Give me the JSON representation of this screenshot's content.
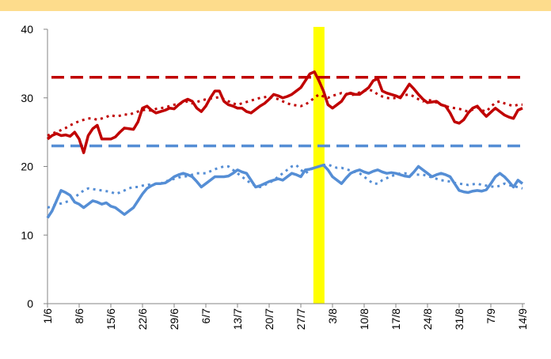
{
  "chart_data": {
    "type": "line",
    "categories": [
      "1/6",
      null,
      null,
      null,
      null,
      null,
      null,
      "8/6",
      null,
      null,
      null,
      null,
      null,
      null,
      "15/6",
      null,
      null,
      null,
      null,
      null,
      null,
      "22/6",
      null,
      null,
      null,
      null,
      null,
      null,
      "29/6",
      null,
      null,
      null,
      null,
      null,
      null,
      "6/7",
      null,
      null,
      null,
      null,
      null,
      null,
      "13/7",
      null,
      null,
      null,
      null,
      null,
      null,
      "20/7",
      null,
      null,
      null,
      null,
      null,
      null,
      "27/7",
      null,
      null,
      null,
      null,
      null,
      null,
      "3/8",
      null,
      null,
      null,
      null,
      null,
      null,
      "10/8",
      null,
      null,
      null,
      null,
      null,
      null,
      "17/8",
      null,
      null,
      null,
      null,
      null,
      null,
      "24/8",
      null,
      null,
      null,
      null,
      null,
      null,
      "31/8",
      null,
      null,
      null,
      null,
      null,
      null,
      "7/9",
      null,
      null,
      null,
      null,
      null,
      null,
      "14/9"
    ],
    "series": [
      {
        "color": "#c00000",
        "style": "solid",
        "values": [
          24,
          24.5,
          24.8,
          24.5,
          24.6,
          24.4,
          25,
          24,
          22,
          24.5,
          25.5,
          26,
          24,
          24,
          24,
          24.3,
          25,
          25.6,
          25.5,
          25.4,
          26.5,
          28.5,
          28.8,
          28.2,
          27.8,
          28,
          28.2,
          28.5,
          28.4,
          29,
          29.5,
          29.8,
          29.5,
          28.5,
          28,
          28.8,
          30,
          31,
          31,
          29.5,
          29,
          28.8,
          28.5,
          28.5,
          28,
          27.8,
          28.3,
          28.8,
          29.2,
          29.8,
          30.5,
          30.3,
          30,
          30.2,
          30.5,
          31,
          31.5,
          32.5,
          33.5,
          33.8,
          32.5,
          31,
          29,
          28.5,
          29,
          29.5,
          30.5,
          30.7,
          30.5,
          30.5,
          31,
          31.5,
          32.5,
          32.8,
          31,
          30.7,
          30.5,
          30.3,
          30,
          31,
          32,
          31.3,
          30.5,
          29.8,
          29.3,
          29.4,
          29.5,
          29,
          28.8,
          27.8,
          26.5,
          26.3,
          26.8,
          27.8,
          28.5,
          28.8,
          28,
          27.3,
          27.9,
          28.5,
          28,
          27.5,
          27.2,
          27,
          28.2,
          28.5
        ]
      },
      {
        "color": "#c00000",
        "style": "dotted",
        "values": [
          24.5,
          24.8,
          25,
          25.3,
          25.6,
          26,
          26.3,
          26.6,
          26.8,
          27,
          27,
          26.8,
          27,
          27.2,
          27.5,
          27.3,
          27.4,
          27.6,
          27.5,
          27.8,
          28,
          28.2,
          28.3,
          28.1,
          28.4,
          28.5,
          28.6,
          28.8,
          29,
          29.1,
          29.3,
          29.5,
          29.2,
          29.4,
          29.6,
          29.8,
          29.9,
          30,
          30.1,
          29.8,
          29.5,
          29.2,
          29,
          29.2,
          29.4,
          29.6,
          29.8,
          30,
          30.1,
          30.2,
          30,
          29.8,
          29.5,
          29.2,
          29,
          28.9,
          28.8,
          29,
          29.5,
          30,
          30.5,
          30.2,
          30,
          30.3,
          30.5,
          30.7,
          30.6,
          30.4,
          30.5,
          30.8,
          31,
          31.2,
          31,
          30.5,
          30.2,
          30,
          29.9,
          30,
          30.2,
          30.4,
          30.5,
          30.2,
          29.8,
          29.5,
          29.7,
          29.6,
          29.3,
          29,
          28.8,
          28.6,
          28.5,
          28.4,
          28.2,
          28,
          28.3,
          28.6,
          28.2,
          28,
          28.7,
          29.3,
          29.5,
          29.2,
          29,
          28.8,
          29,
          29
        ]
      },
      {
        "color": "#558ed5",
        "style": "solid",
        "values": [
          12.5,
          13.5,
          15,
          16.5,
          16.2,
          15.8,
          14.8,
          14.5,
          14,
          14.5,
          15,
          14.8,
          14.5,
          14.7,
          14.2,
          14,
          13.5,
          13,
          13.5,
          14,
          15,
          16,
          16.8,
          17.2,
          17.5,
          17.5,
          17.6,
          18,
          18.5,
          18.8,
          19,
          18.8,
          18.5,
          17.8,
          17,
          17.5,
          18,
          18.5,
          18.5,
          18.5,
          18.6,
          19,
          19.5,
          19.2,
          19,
          18,
          17,
          17.2,
          17.5,
          17.8,
          18,
          18.2,
          18,
          18.5,
          19,
          18.8,
          18.5,
          19.5,
          19.6,
          19.8,
          20,
          20.2,
          19.5,
          18.5,
          18,
          17.5,
          18.3,
          19,
          19.3,
          19.5,
          19.2,
          19,
          19.3,
          19.5,
          19.2,
          19,
          19.1,
          19,
          18.8,
          18.6,
          18.5,
          19.2,
          20,
          19.5,
          19,
          18.5,
          18.8,
          19,
          18.8,
          18.5,
          17.5,
          16.5,
          16.3,
          16.2,
          16.4,
          16.5,
          16.4,
          16.6,
          17.5,
          18.5,
          19,
          18.5,
          17.8,
          17,
          18,
          17.5
        ]
      },
      {
        "color": "#558ed5",
        "style": "dotted",
        "values": [
          14,
          14.2,
          14.5,
          14.6,
          14.8,
          15,
          15.5,
          16,
          16.5,
          16.8,
          16.7,
          16.6,
          16.5,
          16.4,
          16.3,
          16,
          16.2,
          16.5,
          16.8,
          17,
          17,
          17.2,
          17.3,
          17.4,
          17.5,
          17.5,
          17.8,
          18,
          18.2,
          18.4,
          18.5,
          18.6,
          18.8,
          19,
          19,
          19,
          19.3,
          19.6,
          19.8,
          20,
          20,
          19.5,
          19,
          18.5,
          18,
          17.5,
          17.2,
          17,
          17.3,
          17.6,
          18,
          18.5,
          19,
          19.5,
          20,
          20.2,
          19.5,
          19,
          19.5,
          19.8,
          20,
          20.2,
          20.3,
          20,
          19.8,
          19.8,
          19.6,
          19.4,
          19.2,
          19,
          18.5,
          18,
          17.5,
          17.5,
          18,
          18.3,
          18.6,
          18.8,
          19,
          19,
          18.9,
          18.8,
          18.8,
          18.8,
          18.6,
          18.4,
          18.2,
          18,
          17.9,
          17.8,
          17.6,
          17.5,
          17.4,
          17.3,
          17.4,
          17.5,
          17.3,
          17.2,
          17.1,
          17,
          17.2,
          17.5,
          17.3,
          17.1,
          17,
          16.8
        ]
      }
    ],
    "reference_lines": [
      {
        "value": 33,
        "color": "#c00000"
      },
      {
        "value": 23,
        "color": "#558ed5"
      }
    ],
    "highlight": {
      "index": 60,
      "color": "#ffff00"
    },
    "ylim": [
      0,
      40
    ],
    "yticks": [
      0,
      10,
      20,
      30,
      40
    ],
    "grid": false
  }
}
